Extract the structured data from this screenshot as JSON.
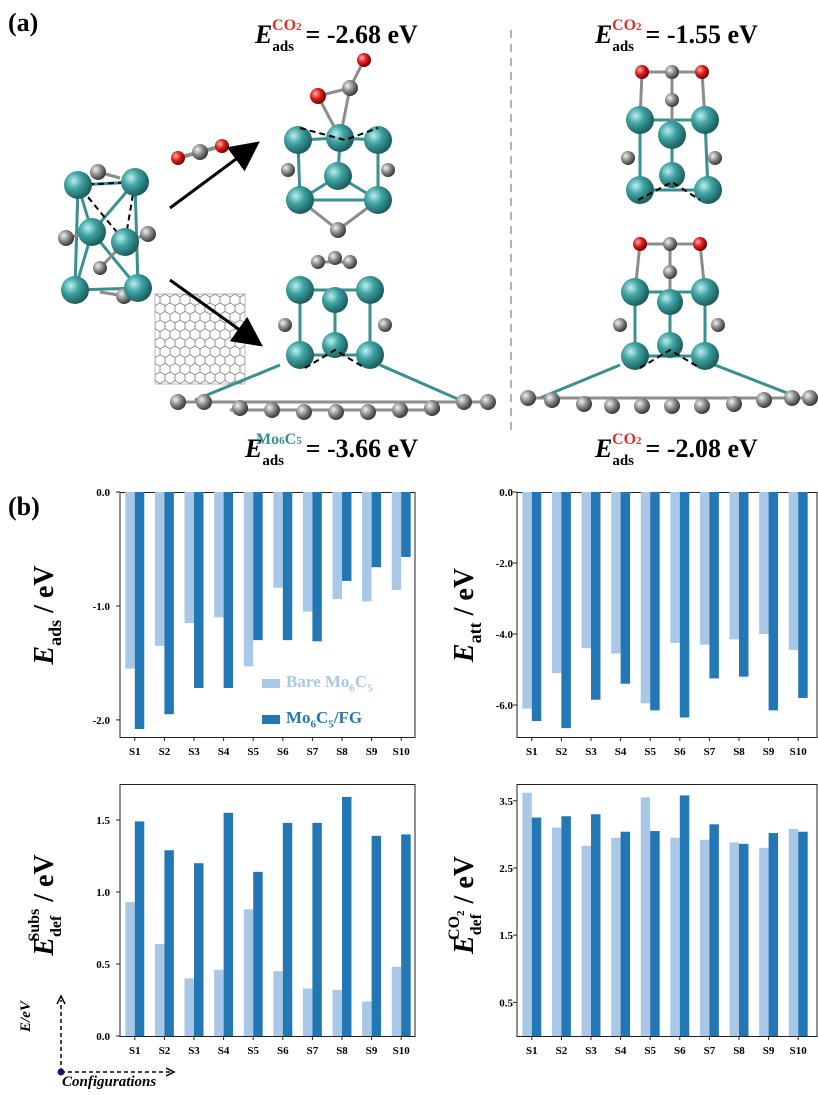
{
  "panel_a": {
    "label": "(a)",
    "energies": [
      {
        "symbol": "E",
        "sub": "ads",
        "sup": "CO2",
        "value": "= -2.68 eV"
      },
      {
        "symbol": "E",
        "sub": "ads",
        "sup": "CO2",
        "value": "= -1.55 eV"
      },
      {
        "symbol": "E",
        "sub": "ads",
        "sup": "Mo6C5",
        "value": "= -3.66 eV"
      },
      {
        "symbol": "E",
        "sub": "ads",
        "sup": "CO2",
        "value": "= -2.08 eV"
      }
    ]
  },
  "panel_b": {
    "label": "(b)",
    "legend": [
      "Bare Mo6C5",
      "Mo6C5/FG"
    ],
    "axes_hint": {
      "y": "E/eV",
      "x": "Configurations"
    }
  },
  "colors": {
    "bare": "#a9c8e8",
    "fg": "#2277b4",
    "teal": "#3a8f8f",
    "oxygen": "#d62020",
    "carbon": "#8c8c8c"
  },
  "chart_data": [
    {
      "type": "bar",
      "ylabel": "E_ads / eV",
      "categories": [
        "S1",
        "S2",
        "S3",
        "S4",
        "S5",
        "S6",
        "S7",
        "S8",
        "S9",
        "S10"
      ],
      "yticks": [
        "0.0",
        "-1.0",
        "-2.0"
      ],
      "ylim": [
        -2.15,
        0.0
      ],
      "series": [
        {
          "name": "Bare Mo6C5",
          "values": [
            -1.55,
            -1.35,
            -1.15,
            -1.1,
            -1.53,
            -0.84,
            -1.05,
            -0.94,
            -0.96,
            -0.86
          ]
        },
        {
          "name": "Mo6C5/FG",
          "values": [
            -2.08,
            -1.95,
            -1.72,
            -1.72,
            -1.3,
            -1.3,
            -1.31,
            -0.78,
            -0.66,
            -0.57
          ]
        }
      ]
    },
    {
      "type": "bar",
      "ylabel": "E_att / eV",
      "categories": [
        "S1",
        "S2",
        "S3",
        "S4",
        "S5",
        "S6",
        "S7",
        "S8",
        "S9",
        "S10"
      ],
      "yticks": [
        "0.0",
        "-2.0",
        "-4.0",
        "-6.0"
      ],
      "ylim": [
        -6.9,
        0.0
      ],
      "series": [
        {
          "name": "Bare Mo6C5",
          "values": [
            -6.1,
            -5.1,
            -4.4,
            -4.55,
            -5.95,
            -4.25,
            -4.3,
            -4.15,
            -4.0,
            -4.45
          ]
        },
        {
          "name": "Mo6C5/FG",
          "values": [
            -6.45,
            -6.65,
            -5.85,
            -5.4,
            -6.15,
            -6.35,
            -5.25,
            -5.2,
            -6.15,
            -5.8
          ]
        }
      ]
    },
    {
      "type": "bar",
      "ylabel": "E_def^Subs / eV",
      "categories": [
        "S1",
        "S2",
        "S3",
        "S4",
        "S5",
        "S6",
        "S7",
        "S8",
        "S9",
        "S10"
      ],
      "yticks": [
        "0.0",
        "0.5",
        "1.0",
        "1.5"
      ],
      "ylim": [
        0.0,
        1.75
      ],
      "series": [
        {
          "name": "Bare Mo6C5",
          "values": [
            0.93,
            0.64,
            0.4,
            0.46,
            0.88,
            0.45,
            0.33,
            0.32,
            0.24,
            0.48
          ]
        },
        {
          "name": "Mo6C5/FG",
          "values": [
            1.49,
            1.29,
            1.2,
            1.55,
            1.14,
            1.48,
            1.48,
            1.66,
            1.39,
            1.4
          ]
        }
      ]
    },
    {
      "type": "bar",
      "ylabel": "E_def^CO2 / eV",
      "categories": [
        "S1",
        "S2",
        "S3",
        "S4",
        "S5",
        "S6",
        "S7",
        "S8",
        "S9",
        "S10"
      ],
      "yticks": [
        "0.5",
        "1.5",
        "2.5",
        "3.5"
      ],
      "ylim": [
        0.0,
        3.75
      ],
      "series": [
        {
          "name": "Bare Mo6C5",
          "values": [
            3.62,
            3.1,
            2.83,
            2.95,
            3.55,
            2.95,
            2.92,
            2.88,
            2.8,
            3.08
          ]
        },
        {
          "name": "Mo6C5/FG",
          "values": [
            3.25,
            3.27,
            3.3,
            3.04,
            3.05,
            3.58,
            3.15,
            2.86,
            3.02,
            3.04
          ]
        }
      ]
    }
  ]
}
